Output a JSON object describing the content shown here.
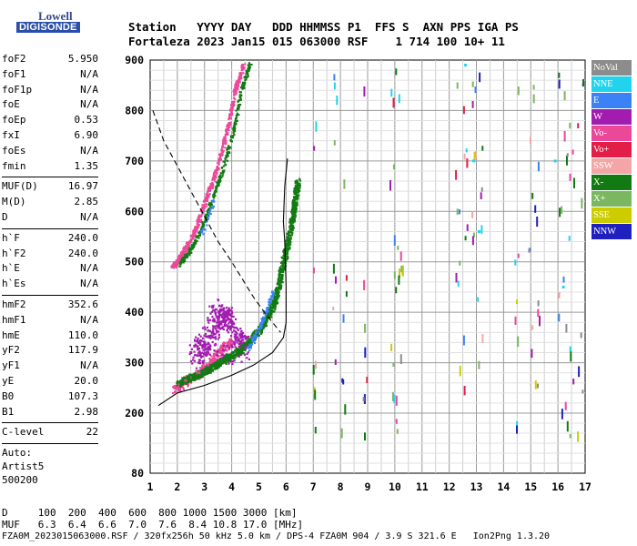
{
  "logo": {
    "line1": "Lowell",
    "line2": "DIGISONDE"
  },
  "header": {
    "line1": "Station   YYYY DAY   DDD HHMMSS P1  FFS S  AXN PPS IGA PS",
    "line2": "Fortaleza 2023 Jan15 015 063000 RSF    1 714 100 10+ 11"
  },
  "params": {
    "group1": [
      {
        "k": "foF2",
        "v": "5.950"
      },
      {
        "k": "foF1",
        "v": "N/A"
      },
      {
        "k": "foF1p",
        "v": "N/A"
      },
      {
        "k": "foE",
        "v": "N/A"
      },
      {
        "k": "foEp",
        "v": "0.53"
      },
      {
        "k": "fxI",
        "v": "6.90"
      },
      {
        "k": "foEs",
        "v": "N/A"
      },
      {
        "k": "fmin",
        "v": "1.35"
      }
    ],
    "group2": [
      {
        "k": "MUF(D)",
        "v": "16.97"
      },
      {
        "k": "M(D)",
        "v": "2.85"
      },
      {
        "k": "D",
        "v": "N/A"
      }
    ],
    "group3": [
      {
        "k": "h`F",
        "v": "240.0"
      },
      {
        "k": "h`F2",
        "v": "240.0"
      },
      {
        "k": "h`E",
        "v": "N/A"
      },
      {
        "k": "h`Es",
        "v": "N/A"
      }
    ],
    "group4": [
      {
        "k": "hmF2",
        "v": "352.6"
      },
      {
        "k": "hmF1",
        "v": "N/A"
      },
      {
        "k": "hmE",
        "v": "110.0"
      },
      {
        "k": "yF2",
        "v": "117.9"
      },
      {
        "k": "yF1",
        "v": "N/A"
      },
      {
        "k": "yE",
        "v": "20.0"
      },
      {
        "k": "B0",
        "v": "107.3"
      },
      {
        "k": "B1",
        "v": "2.98"
      }
    ],
    "group5": [
      {
        "k": "C-level",
        "v": "22"
      }
    ],
    "auto": [
      "Auto:",
      "Artist5",
      "500200"
    ]
  },
  "legend": [
    {
      "label": "NoVal",
      "color": "#8c8c8c"
    },
    {
      "label": "NNE",
      "color": "#22d3ee"
    },
    {
      "label": "E",
      "color": "#3b82f6"
    },
    {
      "label": "W",
      "color": "#a21caf"
    },
    {
      "label": "Vo-",
      "color": "#ec4899"
    },
    {
      "label": "Vo+",
      "color": "#e11d48"
    },
    {
      "label": "SSW",
      "color": "#f4a6a6"
    },
    {
      "label": "X-",
      "color": "#127a12"
    },
    {
      "label": "X+",
      "color": "#7bb661"
    },
    {
      "label": "SSE",
      "color": "#cccc00"
    },
    {
      "label": "NNW",
      "color": "#2020c0"
    }
  ],
  "bottom": {
    "line1": "D     100  200  400  600  800 1000 1500 3000 [km]",
    "line2": "MUF   6.3  6.4  6.6  7.0  7.6  8.4 10.8 17.0 [MHz]"
  },
  "footer": "FZA0M_2023015063000.RSF / 320fx256h 50 kHz 5.0 km / DPS-4 FZA0M 904 / 3.9 S 321.6 E   Ion2Png 1.3.20",
  "chart_data": {
    "type": "scatter",
    "title": "",
    "xlabel": "",
    "ylabel": "",
    "xlim": [
      1,
      17
    ],
    "ylim": [
      80,
      900
    ],
    "x_ticks": [
      1,
      2,
      3,
      4,
      5,
      6,
      7,
      8,
      9,
      10,
      11,
      12,
      13,
      14,
      15,
      16,
      17
    ],
    "y_ticks": [
      80,
      200,
      300,
      400,
      500,
      600,
      700,
      800,
      900
    ],
    "grid": true,
    "series": [
      {
        "name": "X-",
        "color": "#127a12",
        "points": [
          [
            2.0,
            260
          ],
          [
            2.6,
            275
          ],
          [
            3.2,
            290
          ],
          [
            3.8,
            310
          ],
          [
            4.4,
            330
          ],
          [
            4.9,
            360
          ],
          [
            5.3,
            390
          ],
          [
            5.6,
            430
          ],
          [
            5.8,
            480
          ],
          [
            6.0,
            530
          ],
          [
            6.2,
            580
          ],
          [
            6.3,
            620
          ],
          [
            6.4,
            660
          ]
        ]
      },
      {
        "name": "W",
        "color": "#a21caf",
        "points": [
          [
            2.5,
            320
          ],
          [
            3.0,
            340
          ],
          [
            3.5,
            370
          ],
          [
            3.8,
            400
          ],
          [
            4.2,
            350
          ],
          [
            4.5,
            330
          ],
          [
            2.8,
            300
          ],
          [
            3.3,
            410
          ],
          [
            4.0,
            380
          ]
        ]
      },
      {
        "name": "Vo-",
        "color": "#ec4899",
        "points": [
          [
            1.9,
            250
          ],
          [
            2.3,
            265
          ],
          [
            2.8,
            280
          ],
          [
            3.2,
            300
          ],
          [
            3.6,
            330
          ],
          [
            4.0,
            340
          ],
          [
            1.8,
            490
          ],
          [
            2.2,
            520
          ],
          [
            2.6,
            560
          ],
          [
            3.0,
            620
          ],
          [
            3.4,
            680
          ],
          [
            3.8,
            760
          ],
          [
            4.1,
            840
          ],
          [
            4.4,
            890
          ]
        ]
      },
      {
        "name": "E",
        "color": "#3b82f6",
        "points": [
          [
            4.6,
            330
          ],
          [
            4.9,
            360
          ],
          [
            5.2,
            400
          ],
          [
            5.5,
            440
          ],
          [
            2.9,
            560
          ],
          [
            3.3,
            620
          ]
        ]
      },
      {
        "name": "NNE",
        "color": "#22d3ee",
        "points": [
          [
            12.6,
            890
          ],
          [
            12.9,
            700
          ],
          [
            13.1,
            560
          ],
          [
            15.9,
            700
          ],
          [
            16.2,
            450
          ]
        ]
      }
    ],
    "curves": {
      "solid_profile": [
        [
          1.3,
          215
        ],
        [
          2.0,
          240
        ],
        [
          3.0,
          255
        ],
        [
          4.0,
          275
        ],
        [
          4.8,
          295
        ],
        [
          5.5,
          320
        ],
        [
          5.9,
          350
        ],
        [
          6.0,
          380
        ],
        [
          6.0,
          450
        ],
        [
          5.95,
          540
        ],
        [
          5.9,
          580
        ],
        [
          5.95,
          650
        ],
        [
          6.05,
          705
        ]
      ],
      "dashed_profile": [
        [
          1.1,
          800
        ],
        [
          1.5,
          740
        ],
        [
          2.0,
          690
        ],
        [
          2.5,
          640
        ],
        [
          3.0,
          590
        ],
        [
          3.5,
          540
        ],
        [
          4.0,
          500
        ],
        [
          4.4,
          465
        ],
        [
          4.8,
          430
        ],
        [
          5.2,
          400
        ],
        [
          5.5,
          380
        ],
        [
          5.8,
          360
        ]
      ]
    }
  }
}
